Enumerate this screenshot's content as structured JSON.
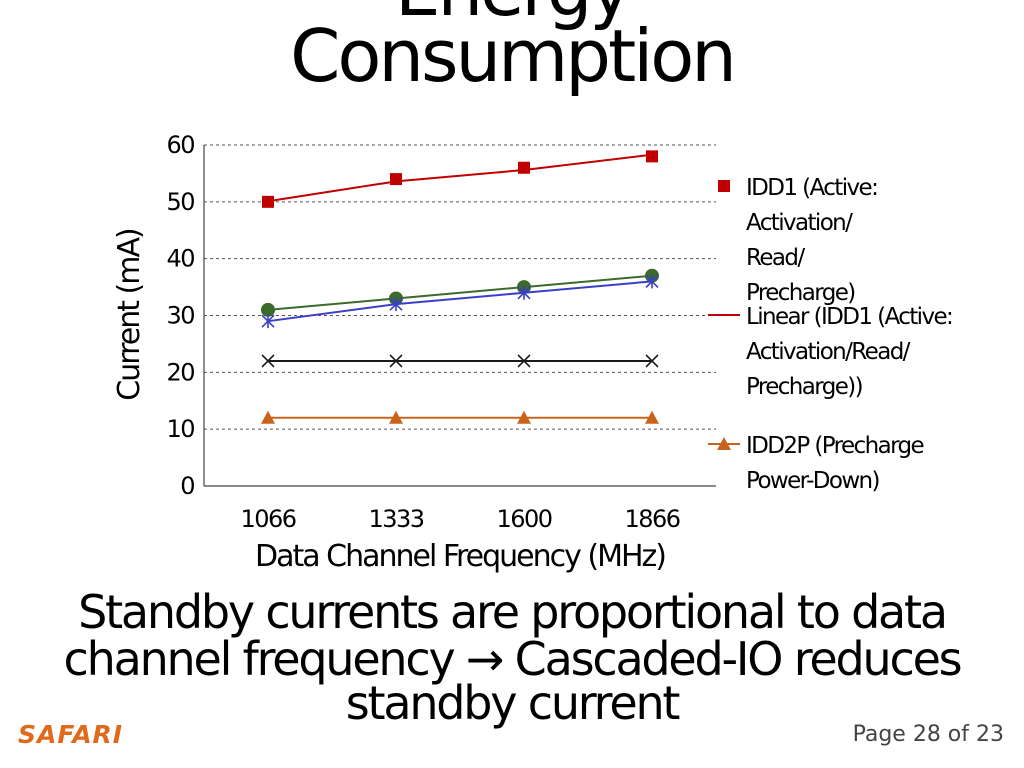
{
  "slide": {
    "title_line1": "Energy",
    "title_line2": "Consumption",
    "caption_line1": "Standby currents are proportional to data",
    "caption_line2": "channel frequency → Cascaded-IO reduces",
    "caption_line3": "standby current",
    "brand": "SAFARI",
    "page_indicator": "Page 28 of 23"
  },
  "colors": {
    "idd1": "#c00000",
    "linear_idd1": "#c00000",
    "green_series": "#3c6a2a",
    "blue_series": "#3a3fc8",
    "black_series": "#1a1a1a",
    "idd2p": "#c8631c",
    "grid": "#555555"
  },
  "chart_data": {
    "type": "line",
    "xlabel": "Data Channel Frequency (MHz)",
    "ylabel": "Current (mA)",
    "ylim": [
      0,
      60
    ],
    "y_ticks": [
      0,
      10,
      20,
      30,
      40,
      50,
      60
    ],
    "y_tick_labels": [
      "0",
      "10",
      "20",
      "30",
      "40",
      "50",
      "60"
    ],
    "categories": [
      "1066",
      "1333",
      "1600",
      "1866"
    ],
    "grid": "horizontal-dashed",
    "legend_position": "right",
    "series": [
      {
        "name": "IDD1 (Active: Activation/ Read/ Precharge)",
        "values": [
          50,
          54,
          56,
          58
        ],
        "marker": "square",
        "line": false,
        "color": "#c00000"
      },
      {
        "name": "Linear (IDD1 (Active: Activation/Read/ Precharge))",
        "values": [
          50.1,
          53.6,
          55.6,
          58.3
        ],
        "marker": "none",
        "line": true,
        "color": "#c00000"
      },
      {
        "values": [
          31,
          33,
          35,
          37
        ],
        "marker": "circle",
        "line": true,
        "color": "#3c6a2a"
      },
      {
        "values": [
          29,
          32,
          34,
          36
        ],
        "marker": "star",
        "line": true,
        "color": "#3a3fc8"
      },
      {
        "values": [
          22,
          22,
          22,
          22
        ],
        "marker": "x",
        "line": true,
        "color": "#1a1a1a"
      },
      {
        "name": "IDD2P (Precharge Power-Down)",
        "values": [
          12,
          12,
          12,
          12
        ],
        "marker": "triangle",
        "line": true,
        "color": "#c8631c"
      }
    ],
    "legend": [
      {
        "series_index": 0,
        "lines": [
          "IDD1 (Active:",
          "Activation/",
          "Read/",
          "Precharge)"
        ]
      },
      {
        "series_index": 1,
        "lines": [
          "Linear (IDD1 (Active:",
          "Activation/Read/",
          "Precharge))"
        ]
      },
      {
        "series_index": 5,
        "lines": [
          "IDD2P (Precharge",
          "Power-Down)"
        ]
      }
    ]
  }
}
